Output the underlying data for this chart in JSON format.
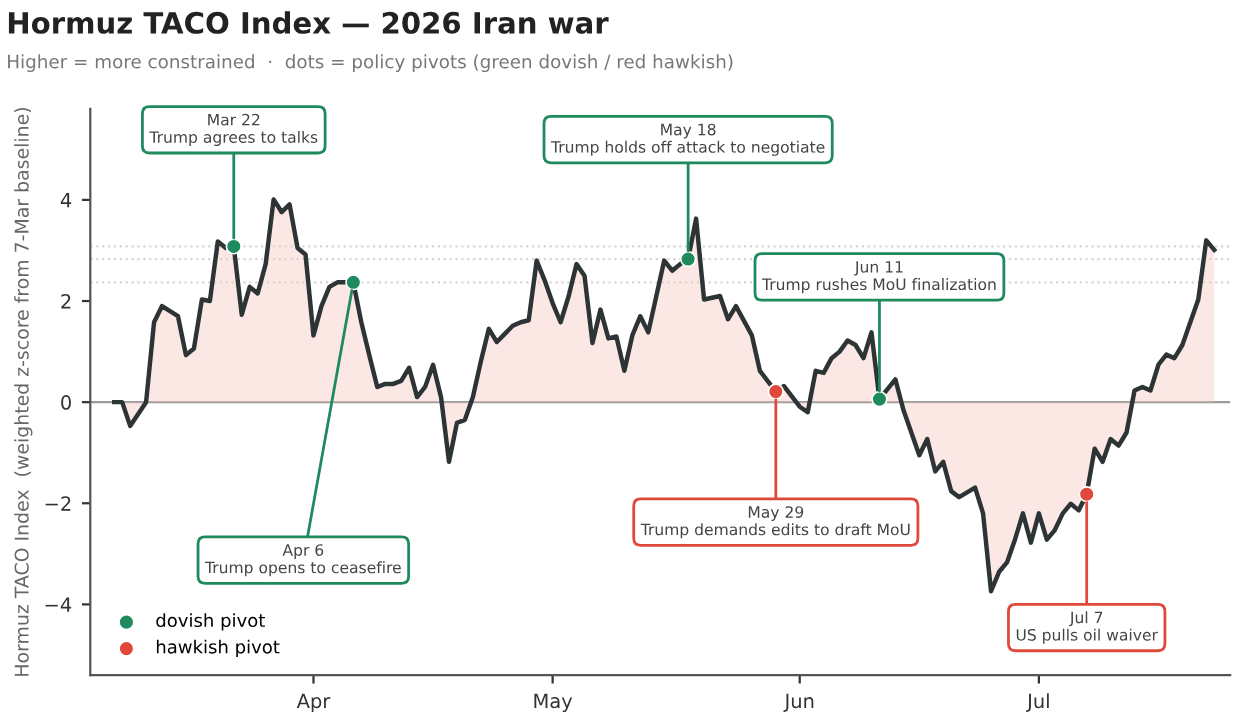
{
  "chart_data": {
    "type": "area",
    "title": "Hormuz TACO Index — 2026 Iran war",
    "subtitle": "Higher = more constrained  ·  dots = policy pivots (green dovish / red hawkish)",
    "ylabel": "Hormuz TACO Index  (weighted z-score from 7-Mar baseline)",
    "xlim": [
      "2026-03-04",
      "2026-07-25"
    ],
    "xticks": [
      {
        "value": "2026-04-01",
        "label": "Apr"
      },
      {
        "value": "2026-05-01",
        "label": "May"
      },
      {
        "value": "2026-06-01",
        "label": "Jun"
      },
      {
        "value": "2026-07-01",
        "label": "Jul"
      }
    ],
    "ylim": [
      -5.4,
      5.8
    ],
    "yticks": [
      {
        "value": -4,
        "label": "−4"
      },
      {
        "value": -2,
        "label": "−2"
      },
      0,
      2,
      4
    ],
    "grid": false,
    "legend": "bottom left",
    "series": [
      {
        "color": "#2d3436",
        "x": [
          "2026-03-07",
          "2026-03-08",
          "2026-03-09",
          "2026-03-11",
          "2026-03-12",
          "2026-03-13",
          "2026-03-15",
          "2026-03-16",
          "2026-03-17",
          "2026-03-18",
          "2026-03-19",
          "2026-03-20",
          "2026-03-21",
          "2026-03-22",
          "2026-03-23",
          "2026-03-24",
          "2026-03-25",
          "2026-03-26",
          "2026-03-27",
          "2026-03-28",
          "2026-03-29",
          "2026-03-30",
          "2026-03-31",
          "2026-04-01",
          "2026-04-02",
          "2026-04-03",
          "2026-04-04",
          "2026-04-06",
          "2026-04-07",
          "2026-04-08",
          "2026-04-09",
          "2026-04-10",
          "2026-04-11",
          "2026-04-12",
          "2026-04-13",
          "2026-04-14",
          "2026-04-15",
          "2026-04-16",
          "2026-04-17",
          "2026-04-18",
          "2026-04-19",
          "2026-04-20",
          "2026-04-21",
          "2026-04-22",
          "2026-04-23",
          "2026-04-24",
          "2026-04-25",
          "2026-04-26",
          "2026-04-27",
          "2026-04-28",
          "2026-04-29",
          "2026-04-30",
          "2026-05-01",
          "2026-05-02",
          "2026-05-03",
          "2026-05-04",
          "2026-05-05",
          "2026-05-06",
          "2026-05-07",
          "2026-05-08",
          "2026-05-09",
          "2026-05-10",
          "2026-05-11",
          "2026-05-12",
          "2026-05-13",
          "2026-05-15",
          "2026-05-16",
          "2026-05-17",
          "2026-05-18",
          "2026-05-19",
          "2026-05-20",
          "2026-05-22",
          "2026-05-23",
          "2026-05-24",
          "2026-05-26",
          "2026-05-27",
          "2026-05-29",
          "2026-05-30",
          "2026-06-01",
          "2026-06-02",
          "2026-06-03",
          "2026-06-04",
          "2026-06-05",
          "2026-06-06",
          "2026-06-07",
          "2026-06-08",
          "2026-06-09",
          "2026-06-10",
          "2026-06-11",
          "2026-06-13",
          "2026-06-14",
          "2026-06-16",
          "2026-06-17",
          "2026-06-18",
          "2026-06-19",
          "2026-06-20",
          "2026-06-21",
          "2026-06-23",
          "2026-06-24",
          "2026-06-25",
          "2026-06-26",
          "2026-06-27",
          "2026-06-28",
          "2026-06-29",
          "2026-06-30",
          "2026-07-01",
          "2026-07-02",
          "2026-07-03",
          "2026-07-04",
          "2026-07-05",
          "2026-07-06",
          "2026-07-07",
          "2026-07-08",
          "2026-07-09",
          "2026-07-10",
          "2026-07-11",
          "2026-07-12",
          "2026-07-13",
          "2026-07-14",
          "2026-07-15",
          "2026-07-16",
          "2026-07-17",
          "2026-07-18",
          "2026-07-19",
          "2026-07-20",
          "2026-07-21",
          "2026-07-22",
          "2026-07-23"
        ],
        "values": [
          0,
          0,
          -0.47,
          0,
          1.58,
          1.9,
          1.7,
          0.93,
          1.06,
          2.03,
          2.0,
          3.18,
          3.05,
          3.08,
          1.73,
          2.28,
          2.15,
          2.73,
          4.01,
          3.76,
          3.91,
          3.05,
          2.92,
          1.32,
          1.9,
          2.28,
          2.37,
          2.37,
          1.58,
          0.93,
          0.3,
          0.36,
          0.36,
          0.42,
          0.68,
          0.1,
          0.3,
          0.74,
          0.1,
          -1.18,
          -0.41,
          -0.35,
          0.1,
          0.81,
          1.45,
          1.19,
          1.35,
          1.51,
          1.58,
          1.62,
          2.8,
          2.41,
          1.96,
          1.58,
          2.09,
          2.73,
          2.5,
          1.17,
          1.83,
          1.26,
          1.3,
          0.62,
          1.32,
          1.7,
          1.38,
          2.8,
          2.6,
          2.73,
          2.83,
          3.63,
          2.03,
          2.1,
          1.64,
          1.9,
          1.32,
          0.62,
          0.21,
          0.32,
          -0.09,
          -0.2,
          0.62,
          0.58,
          0.87,
          1.0,
          1.22,
          1.13,
          0.87,
          1.38,
          0.06,
          0.45,
          -0.15,
          -1.05,
          -0.73,
          -1.37,
          -1.18,
          -1.76,
          -1.88,
          -1.69,
          -2.2,
          -3.74,
          -3.36,
          -3.17,
          -2.72,
          -2.2,
          -2.78,
          -2.2,
          -2.72,
          -2.53,
          -2.2,
          -2.01,
          -2.14,
          -1.82,
          -0.92,
          -1.18,
          -0.73,
          -0.86,
          -0.6,
          0.23,
          0.3,
          0.23,
          0.74,
          0.94,
          0.87,
          1.13,
          1.58,
          2.03,
          3.2,
          3.01
        ]
      },
      {
        "type": "scatter",
        "name": "dovish pivot",
        "color": "#1e8a5e",
        "x": [
          "2026-03-22",
          "2026-04-06",
          "2026-05-18",
          "2026-06-11"
        ],
        "values": [
          3.08,
          2.37,
          2.83,
          0.06
        ]
      },
      {
        "type": "scatter",
        "name": "hawkish pivot",
        "color": "#e0483c",
        "x": [
          "2026-05-29",
          "2026-07-07"
        ],
        "values": [
          0.21,
          -1.82
        ]
      }
    ],
    "ref_lines": [
      {
        "axis": "y",
        "value": 0,
        "color": "#9a9a9a",
        "line_style": "solid"
      },
      {
        "axis": "y",
        "value": 3.08,
        "color": "#d6d6d6",
        "line_style": "dotted"
      },
      {
        "axis": "y",
        "value": 2.83,
        "color": "#d6d6d6",
        "line_style": "dotted"
      },
      {
        "axis": "y",
        "value": 2.37,
        "color": "#d6d6d6",
        "line_style": "dotted"
      }
    ],
    "annotations": [
      {
        "text": "Mar 22\nTrump agrees to talks",
        "x": "2026-03-22",
        "y": 3.08
      },
      {
        "text": "Apr 6\nTrump opens to ceasefire",
        "x": "2026-04-06",
        "y": 2.37
      },
      {
        "text": "May 18\nTrump holds off attack to negotiate",
        "x": "2026-05-18",
        "y": 2.83
      },
      {
        "text": "May 29\nTrump demands edits to draft MoU",
        "x": "2026-05-29",
        "y": 0.21
      },
      {
        "text": "Jun 11\nTrump rushes MoU finalization",
        "x": "2026-06-11",
        "y": 0.06
      },
      {
        "text": "Jul 7\nUS pulls oil waiver",
        "x": "2026-07-07",
        "y": -1.82
      }
    ]
  }
}
